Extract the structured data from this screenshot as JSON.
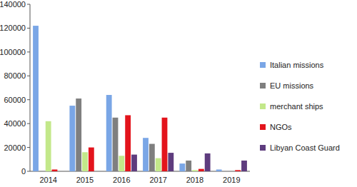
{
  "chart_data": {
    "type": "bar",
    "categories": [
      "2014",
      "2015",
      "2016",
      "2017",
      "2018",
      "2019"
    ],
    "series": [
      {
        "name": "Italian missions",
        "color": "#7aa6e6",
        "values": [
          122000,
          55000,
          64000,
          28000,
          6500,
          1500
        ]
      },
      {
        "name": "EU missions",
        "color": "#7f7f7f",
        "values": [
          0,
          61000,
          45000,
          23000,
          9000,
          0
        ]
      },
      {
        "name": "merchant ships",
        "color": "#c3e88a",
        "values": [
          42000,
          16000,
          13000,
          11000,
          1000,
          0
        ]
      },
      {
        "name": "NGOs",
        "color": "#e3141c",
        "values": [
          1500,
          20000,
          47000,
          45000,
          2000,
          1000
        ]
      },
      {
        "name": "Libyan Coast Guard",
        "color": "#5e3c7e",
        "values": [
          0,
          0,
          14000,
          15500,
          15000,
          9000
        ]
      }
    ],
    "ylim": [
      0,
      140000
    ],
    "yticks": [
      0,
      20000,
      40000,
      60000,
      80000,
      100000,
      120000,
      140000
    ],
    "grid": false,
    "legend": "right"
  }
}
